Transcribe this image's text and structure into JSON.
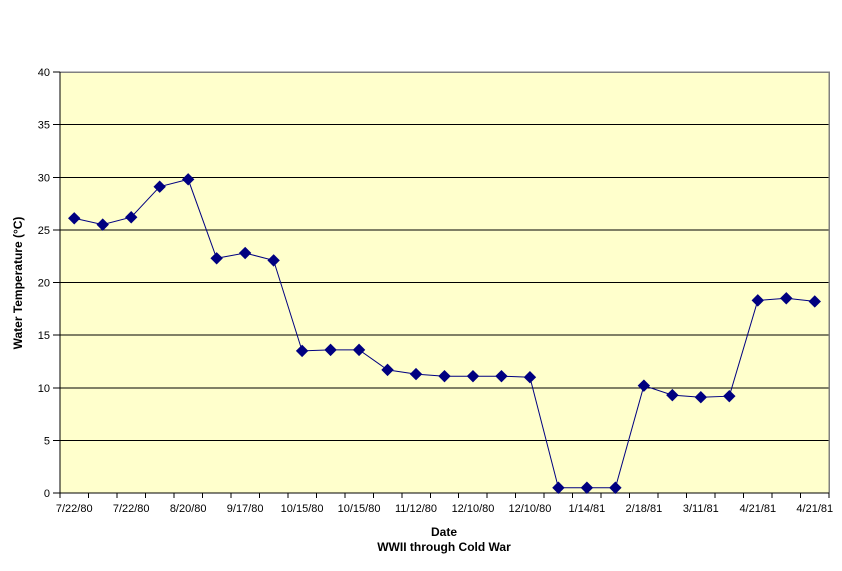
{
  "chart_data": {
    "type": "line",
    "title": "",
    "xlabel": "Date",
    "xlabel_line2": "WWII through Cold War",
    "ylabel": "Water Temperature (°C)",
    "ylim": [
      0,
      40
    ],
    "ytick_interval": 5,
    "ytick_labels": [
      "0",
      "5",
      "10",
      "15",
      "20",
      "25",
      "30",
      "35",
      "40"
    ],
    "categories": [
      "7/22/80",
      "",
      "7/22/80",
      "",
      "8/20/80",
      "",
      "9/17/80",
      "",
      "10/15/80",
      "",
      "10/15/80",
      "",
      "11/12/80",
      "",
      "12/10/80",
      "",
      "12/10/80",
      "",
      "1/14/81",
      "",
      "2/18/81",
      "",
      "3/11/81",
      "",
      "4/21/81",
      "",
      "4/21/81"
    ],
    "values": [
      26.1,
      25.5,
      26.2,
      29.1,
      29.8,
      22.3,
      22.8,
      22.1,
      13.5,
      13.6,
      13.6,
      11.7,
      11.3,
      11.1,
      11.1,
      11.1,
      11.0,
      0.5,
      0.5,
      0.5,
      10.2,
      9.3,
      9.1,
      9.2,
      18.3,
      18.5,
      18.2
    ],
    "marker": "diamond",
    "grid": true,
    "legend_position": "none",
    "colors": {
      "series": "#000080",
      "plot_background": "#FFFFCC",
      "gridline": "#000000",
      "axis": "#000000",
      "plot_border": "#808080",
      "background": "#FFFFFF"
    }
  }
}
